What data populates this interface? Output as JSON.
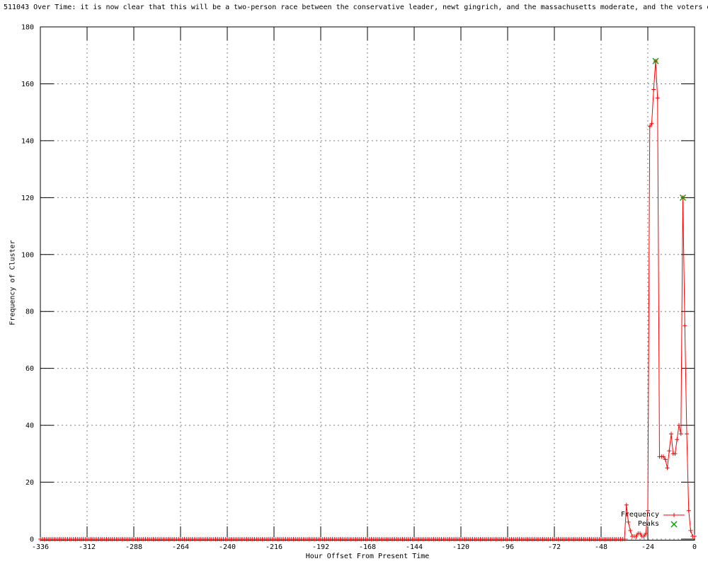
{
  "chart_data": {
    "type": "line",
    "title": "511043 Over Time: it is now clear that this will be a two-person race between the conservative leader, newt gingrich, and the massachusetts moderate, and the voters o",
    "xlabel": "Hour Offset From Present Time",
    "ylabel": "Frequency of Cluster",
    "xlim": [
      -336,
      0
    ],
    "ylim": [
      0,
      180
    ],
    "x_ticks": [
      -336,
      -312,
      -288,
      -264,
      -240,
      -216,
      -192,
      -168,
      -144,
      -120,
      -96,
      -72,
      -48,
      -24,
      0
    ],
    "y_ticks": [
      0,
      20,
      40,
      60,
      80,
      100,
      120,
      140,
      160,
      180
    ],
    "grid": true,
    "grid_color": "#7f7f7f",
    "legend_position": "bottom-right-inside",
    "sample_interval_hours": 1,
    "series": [
      {
        "name": "Frequency",
        "color": "#ff0000",
        "marker": "plus",
        "baseline": {
          "range": [
            -336,
            -37
          ],
          "value": 0
        },
        "points": [
          [
            -36,
            0
          ],
          [
            -35,
            12
          ],
          [
            -34,
            6
          ],
          [
            -33,
            3
          ],
          [
            -32,
            1
          ],
          [
            -31,
            1
          ],
          [
            -30,
            1
          ],
          [
            -29,
            2
          ],
          [
            -28,
            2
          ],
          [
            -27,
            1
          ],
          [
            -26,
            1
          ],
          [
            -25,
            2
          ],
          [
            -24,
            10
          ],
          [
            -23,
            145
          ],
          [
            -22,
            146
          ],
          [
            -21,
            158
          ],
          [
            -20,
            168
          ],
          [
            -19,
            155
          ],
          [
            -18,
            29
          ],
          [
            -17,
            29
          ],
          [
            -16,
            29
          ],
          [
            -15,
            28
          ],
          [
            -14,
            25
          ],
          [
            -13,
            31
          ],
          [
            -12,
            37
          ],
          [
            -11,
            30
          ],
          [
            -10,
            30
          ],
          [
            -9,
            35
          ],
          [
            -8,
            40
          ],
          [
            -7,
            37
          ],
          [
            -6,
            120
          ],
          [
            -5,
            75
          ],
          [
            -4,
            37
          ],
          [
            -3,
            10
          ],
          [
            -2,
            3
          ],
          [
            -1,
            1
          ],
          [
            0,
            1
          ]
        ]
      },
      {
        "name": "Peaks",
        "color": "#00a000",
        "marker": "cross",
        "points": [
          [
            -20,
            168
          ],
          [
            -6,
            120
          ]
        ]
      }
    ]
  }
}
